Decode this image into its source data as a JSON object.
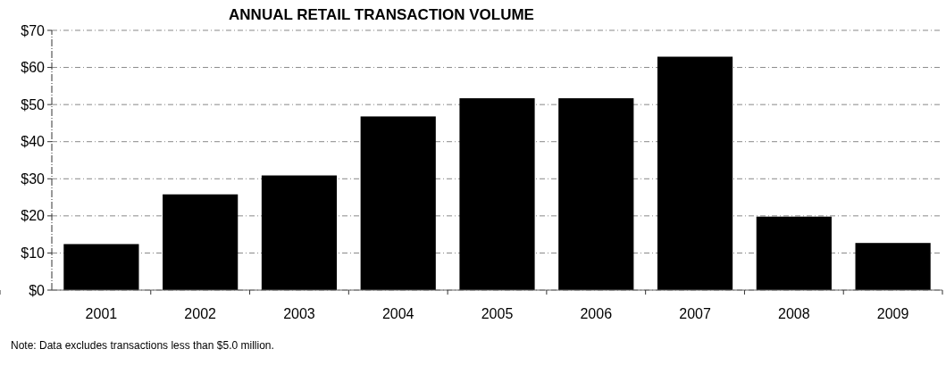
{
  "chart_data": {
    "type": "bar",
    "title": "ANNUAL RETAIL TRANSACTION VOLUME",
    "categories": [
      "2001",
      "2002",
      "2003",
      "2004",
      "2005",
      "2006",
      "2007",
      "2008",
      "2009"
    ],
    "values": [
      12.4,
      25.8,
      30.9,
      46.8,
      51.7,
      51.7,
      62.9,
      19.8,
      12.7
    ],
    "color": "#000000",
    "ylim": [
      0,
      70
    ],
    "yticks": [
      {
        "value": 0,
        "label": "$0"
      },
      {
        "value": 10,
        "label": "$10"
      },
      {
        "value": 20,
        "label": "$20"
      },
      {
        "value": 30,
        "label": "$30"
      },
      {
        "value": 40,
        "label": "$40"
      },
      {
        "value": 50,
        "label": "$50"
      },
      {
        "value": 60,
        "label": "$60"
      },
      {
        "value": 70,
        "label": "$70"
      }
    ],
    "grid": "y",
    "annotations": [
      "Note: Data excludes transactions less than $5.0 million."
    ]
  }
}
